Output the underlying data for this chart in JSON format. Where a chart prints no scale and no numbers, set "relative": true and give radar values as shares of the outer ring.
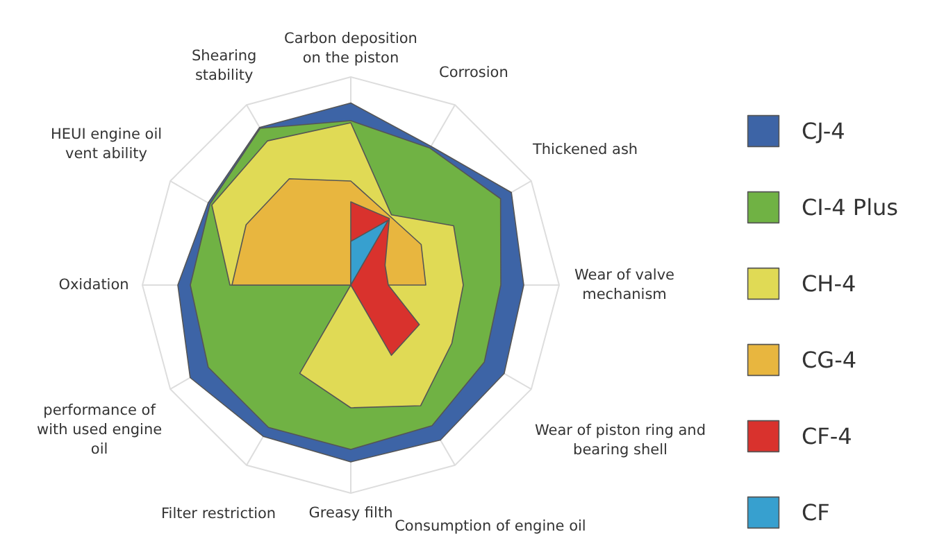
{
  "chart_data": {
    "type": "radar",
    "relative": true,
    "legend": "right",
    "categories": [
      "Carbon deposition\non the piston",
      "Corrosion",
      "Thickened ash",
      "Wear of valve\nmechanism",
      "Wear of piston ring and\nbearing shell",
      "Consumption of engine oil",
      "Greasy filth",
      "Filter restriction",
      "performance of\nwith used engine\noil",
      "Oxidation",
      "HEUI engine oil\nvent ability",
      "Shearing\nstability"
    ],
    "series": [
      {
        "name": "CJ-4",
        "color": "#3d64a6",
        "values": [
          0.875,
          0.77,
          0.89,
          0.83,
          0.85,
          0.86,
          0.85,
          0.84,
          0.89,
          0.83,
          0.79,
          0.875
        ]
      },
      {
        "name": "CI-4 Plus",
        "color": "#70b244",
        "values": [
          0.79,
          0.76,
          0.83,
          0.72,
          0.74,
          0.78,
          0.79,
          0.79,
          0.79,
          0.77,
          0.78,
          0.87
        ]
      },
      {
        "name": "CH-4",
        "color": "#e0da55",
        "values": [
          0.78,
          0.39,
          0.57,
          0.54,
          0.56,
          0.67,
          0.59,
          0.49,
          0,
          0.58,
          0.77,
          0.8
        ]
      },
      {
        "name": "CG-4",
        "color": "#e8b63f",
        "values": [
          0.5,
          0.38,
          0.39,
          0.36,
          0,
          0,
          0,
          0,
          0,
          0.57,
          0.58,
          0.59
        ]
      },
      {
        "name": "CF-4",
        "color": "#d9322d",
        "values": [
          0.4,
          0.37,
          0.19,
          0.18,
          0.38,
          0.39,
          0,
          0,
          0,
          0,
          0,
          0
        ]
      },
      {
        "name": "CF",
        "color": "#37a0cf",
        "values": [
          0.21,
          0.36,
          0,
          0,
          0,
          0,
          0,
          0,
          0,
          0,
          0,
          0
        ]
      }
    ]
  }
}
